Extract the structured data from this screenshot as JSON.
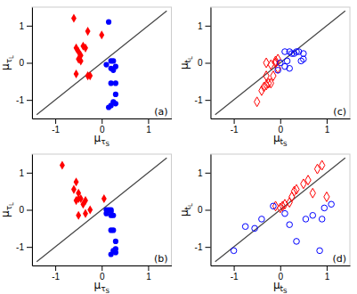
{
  "chart_data": [
    {
      "type": "scatter",
      "xlabel": "μτS",
      "ylabel": "μτL",
      "annotations": [
        "(a)"
      ],
      "xlim": [
        -1.5,
        1.5
      ],
      "ylim": [
        -1.5,
        1.5
      ],
      "xticks": [
        -1,
        0,
        1
      ],
      "yticks": [
        -1,
        0,
        1
      ],
      "grid": false,
      "series": [
        {
          "type": "line",
          "color": "#444444",
          "line_style": "solid",
          "x": [
            -1.4,
            1.4
          ],
          "values": [
            -1.4,
            1.4
          ]
        },
        {
          "type": "scatter",
          "color": "#ff0000",
          "marker": "diamond",
          "x": [
            -0.6,
            -0.55,
            -0.5,
            -0.45,
            -0.5,
            -0.45,
            -0.4,
            -0.35,
            -0.3,
            -0.55,
            -0.25,
            -0.3,
            0.0
          ],
          "values": [
            1.2,
            0.4,
            0.3,
            0.2,
            0.1,
            0.05,
            0.45,
            0.4,
            0.85,
            -0.3,
            -0.35,
            -0.35,
            0.75
          ]
        },
        {
          "type": "scatter",
          "color": "#0000ff",
          "marker": "circle",
          "x": [
            0.15,
            0.2,
            0.25,
            0.1,
            0.2,
            0.3,
            0.25,
            0.2,
            0.3,
            0.3,
            0.25,
            0.3,
            0.2,
            0.15
          ],
          "values": [
            1.1,
            0.05,
            0.05,
            -0.05,
            -0.15,
            -0.1,
            -0.2,
            -0.55,
            -0.55,
            -0.85,
            -1.05,
            -1.1,
            -1.15,
            -1.2
          ]
        }
      ]
    },
    {
      "type": "scatter",
      "xlabel": "μτS",
      "ylabel": "μτL",
      "annotations": [
        "(b)"
      ],
      "xlim": [
        -1.5,
        1.5
      ],
      "ylim": [
        -1.5,
        1.5
      ],
      "xticks": [
        -1,
        0,
        1
      ],
      "yticks": [
        -1,
        0,
        1
      ],
      "grid": false,
      "series": [
        {
          "type": "line",
          "color": "#444444",
          "line_style": "solid",
          "x": [
            -1.4,
            1.4
          ],
          "values": [
            -1.4,
            1.4
          ]
        },
        {
          "type": "scatter",
          "color": "#ff0000",
          "marker": "diamond",
          "x": [
            -0.85,
            -0.55,
            -0.6,
            -0.5,
            -0.45,
            -0.55,
            -0.5,
            -0.35,
            -0.4,
            -0.5,
            -0.25,
            -0.35,
            0.05
          ],
          "values": [
            1.2,
            0.75,
            0.55,
            0.45,
            0.3,
            0.25,
            0.3,
            0.25,
            0.15,
            -0.15,
            0.0,
            -0.1,
            0.3
          ]
        },
        {
          "type": "scatter",
          "color": "#0000ff",
          "marker": "circle",
          "x": [
            0.1,
            0.15,
            0.2,
            0.2,
            0.1,
            0.2,
            0.25,
            0.25,
            0.2,
            0.3,
            0.3,
            0.25,
            0.3,
            0.2
          ],
          "values": [
            0.0,
            0.0,
            0.0,
            -0.05,
            -0.1,
            -0.15,
            -0.15,
            -0.55,
            -0.55,
            -0.85,
            -1.05,
            -1.1,
            -1.15,
            -1.2
          ]
        }
      ]
    },
    {
      "type": "scatter",
      "xlabel": "μtS",
      "ylabel": "μtL",
      "annotations": [
        "(c)"
      ],
      "xlim": [
        -1.5,
        1.5
      ],
      "ylim": [
        -1.5,
        1.5
      ],
      "xticks": [
        -1,
        0,
        1
      ],
      "yticks": [
        -1,
        0,
        1
      ],
      "grid": false,
      "series": [
        {
          "type": "line",
          "color": "#444444",
          "line_style": "solid",
          "x": [
            -1.4,
            1.4
          ],
          "values": [
            -1.4,
            1.4
          ]
        },
        {
          "type": "scatter",
          "color": "#ff0000",
          "marker": "diamond-open",
          "x": [
            -0.5,
            -0.4,
            -0.35,
            -0.3,
            -0.25,
            -0.2,
            -0.15,
            -0.3,
            -0.3,
            -0.2,
            -0.1,
            -0.1,
            -0.05,
            -0.05
          ],
          "values": [
            -1.05,
            -0.75,
            -0.65,
            -0.6,
            -0.55,
            -0.55,
            -0.35,
            -0.35,
            0.0,
            -0.05,
            0.0,
            0.05,
            0.1,
            -0.15
          ]
        },
        {
          "type": "scatter",
          "color": "#0000ff",
          "marker": "circle-open",
          "x": [
            0.1,
            0.2,
            0.25,
            0.3,
            0.35,
            0.4,
            0.5,
            0.5,
            0.45,
            0.15,
            0.0,
            0.1,
            0.2,
            -0.05
          ],
          "values": [
            0.3,
            0.3,
            0.25,
            0.25,
            0.3,
            0.3,
            0.25,
            0.1,
            0.05,
            0.05,
            0.0,
            -0.1,
            -0.15,
            -0.2
          ]
        }
      ]
    },
    {
      "type": "scatter",
      "xlabel": "μtS",
      "ylabel": "μtL",
      "annotations": [
        "(d)"
      ],
      "xlim": [
        -1.5,
        1.5
      ],
      "ylim": [
        -1.5,
        1.5
      ],
      "xticks": [
        -1,
        0,
        1
      ],
      "yticks": [
        -1,
        0,
        1
      ],
      "grid": false,
      "series": [
        {
          "type": "line",
          "color": "#444444",
          "line_style": "solid",
          "x": [
            -1.4,
            1.4
          ],
          "values": [
            -1.4,
            1.4
          ]
        },
        {
          "type": "scatter",
          "color": "#ff0000",
          "marker": "diamond-open",
          "x": [
            -0.1,
            0.0,
            0.05,
            0.1,
            0.2,
            0.25,
            0.3,
            0.35,
            0.5,
            0.6,
            0.7,
            0.8,
            0.9,
            1.0
          ],
          "values": [
            0.1,
            0.05,
            0.1,
            0.15,
            0.2,
            0.35,
            0.5,
            0.55,
            0.7,
            0.8,
            0.45,
            1.1,
            1.2,
            0.35
          ]
        },
        {
          "type": "scatter",
          "color": "#0000ff",
          "marker": "circle-open",
          "x": [
            -1.0,
            -0.75,
            -0.55,
            -0.4,
            -0.15,
            0.1,
            0.2,
            0.35,
            0.55,
            0.7,
            0.85,
            0.9,
            0.95,
            1.1
          ],
          "values": [
            -1.1,
            -0.45,
            -0.5,
            -0.25,
            0.1,
            -0.1,
            -0.4,
            -0.85,
            -0.25,
            -0.15,
            -1.1,
            -0.25,
            0.05,
            0.15
          ]
        }
      ]
    }
  ]
}
